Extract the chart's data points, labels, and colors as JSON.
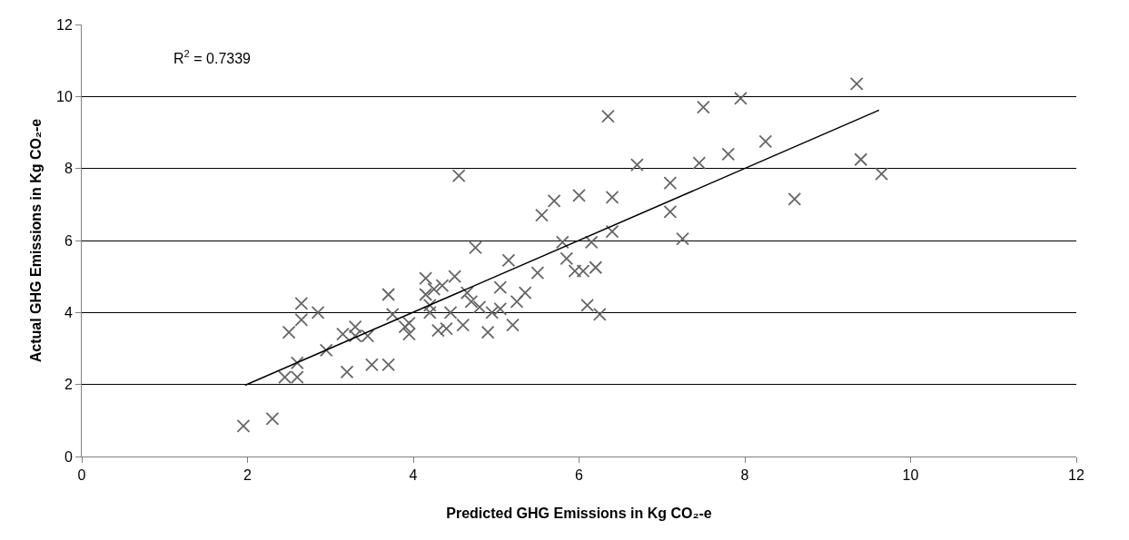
{
  "chart_data": {
    "type": "scatter",
    "xlabel": "Predicted GHG Emissions in Kg CO₂-e",
    "ylabel": "Actual GHG Emissions in Kg CO₂-e",
    "annotations": [
      "R$^{2}$ = 0.7339"
    ],
    "xlim": [
      0,
      12
    ],
    "xticks": [
      0,
      2,
      4,
      6,
      8,
      10,
      12
    ],
    "ylim": [
      0,
      12
    ],
    "yticks": [
      0,
      2,
      4,
      6,
      8,
      10,
      12
    ],
    "grid": "y",
    "marker": "cross",
    "series": [
      {
        "color": "#666666",
        "x": [
          1.95,
          2.3,
          2.45,
          2.6,
          2.6,
          2.5,
          2.65,
          2.65,
          2.85,
          2.95,
          3.15,
          3.2,
          3.3,
          3.3,
          3.45,
          3.5,
          3.7,
          3.7,
          3.75,
          3.9,
          3.95,
          3.95,
          4.15,
          4.15,
          4.2,
          4.2,
          4.25,
          4.3,
          4.35,
          4.4,
          4.45,
          4.5,
          4.55,
          4.6,
          4.65,
          4.7,
          4.75,
          4.8,
          4.9,
          4.95,
          5.05,
          5.05,
          5.15,
          5.2,
          5.25,
          5.35,
          5.5,
          5.55,
          5.7,
          5.8,
          5.85,
          5.95,
          6.0,
          6.05,
          6.1,
          6.15,
          6.2,
          6.25,
          6.35,
          6.4,
          6.4,
          6.7,
          7.1,
          7.1,
          7.25,
          7.45,
          7.5,
          7.8,
          7.95,
          8.25,
          8.6,
          9.35,
          9.4,
          9.65
        ],
        "values": [
          0.85,
          1.05,
          2.2,
          2.2,
          2.6,
          3.45,
          3.8,
          4.25,
          4.0,
          2.95,
          3.4,
          2.35,
          3.6,
          3.35,
          3.35,
          2.55,
          2.55,
          4.5,
          3.95,
          3.6,
          3.4,
          3.7,
          4.95,
          4.5,
          4.2,
          4.0,
          4.65,
          3.5,
          4.75,
          3.55,
          4.0,
          5.0,
          7.8,
          3.65,
          4.55,
          4.3,
          5.8,
          4.15,
          3.45,
          4.0,
          4.1,
          4.7,
          5.45,
          3.65,
          4.3,
          4.55,
          5.1,
          6.7,
          7.1,
          5.95,
          5.5,
          5.15,
          7.25,
          5.15,
          4.2,
          5.95,
          5.25,
          3.95,
          9.45,
          7.2,
          6.25,
          8.1,
          7.6,
          6.8,
          6.05,
          8.15,
          9.7,
          8.4,
          9.95,
          8.75,
          7.15,
          10.35,
          8.25,
          7.85
        ]
      },
      {
        "type": "line",
        "color": "#000000",
        "marker": "none",
        "line_style": "solid",
        "x": [
          1.97,
          9.62
        ],
        "values": [
          1.98,
          9.62
        ]
      }
    ]
  }
}
